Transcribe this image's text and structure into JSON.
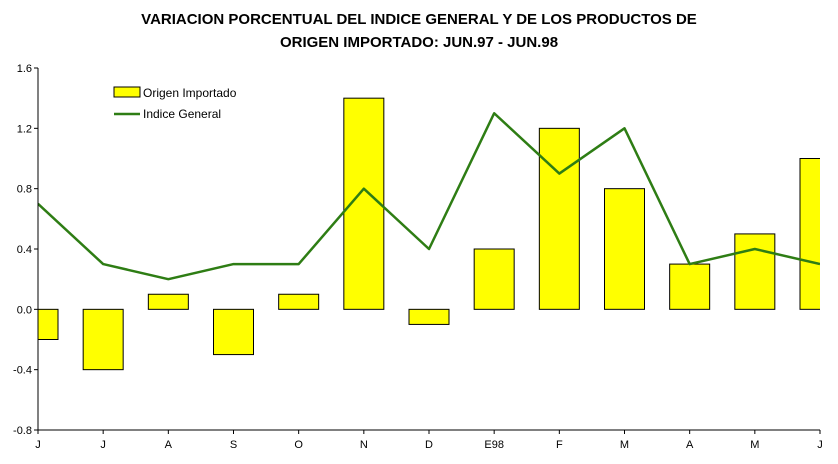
{
  "title_line1": "VARIACION PORCENTUAL DEL INDICE GENERAL Y DE LOS PRODUCTOS DE",
  "title_line2": "ORIGEN IMPORTADO: JUN.97 - JUN.98",
  "colors": {
    "bar_fill": "#ffff00",
    "bar_stroke": "#000000",
    "line": "#2e7d14"
  },
  "chart_data": {
    "type": "bar",
    "categories": [
      "J",
      "J",
      "A",
      "S",
      "O",
      "N",
      "D",
      "E98",
      "F",
      "M",
      "A",
      "M",
      "J"
    ],
    "series": [
      {
        "name": "Origen Importado",
        "type": "bar",
        "values": [
          -0.2,
          -0.4,
          0.1,
          -0.3,
          0.1,
          1.4,
          -0.1,
          0.4,
          1.2,
          0.8,
          0.3,
          0.5,
          1.0
        ]
      },
      {
        "name": "Indice General",
        "type": "line",
        "values": [
          0.7,
          0.3,
          0.2,
          0.3,
          0.3,
          0.8,
          0.4,
          1.3,
          0.9,
          1.2,
          0.3,
          0.4,
          0.3
        ]
      }
    ],
    "ylim": [
      -0.8,
      1.6
    ],
    "yticks": [
      "1.6",
      "1.2",
      "0.8",
      "0.4",
      "0.0",
      "-0.4",
      "-0.8"
    ],
    "grid": false,
    "legend": "top-left"
  }
}
